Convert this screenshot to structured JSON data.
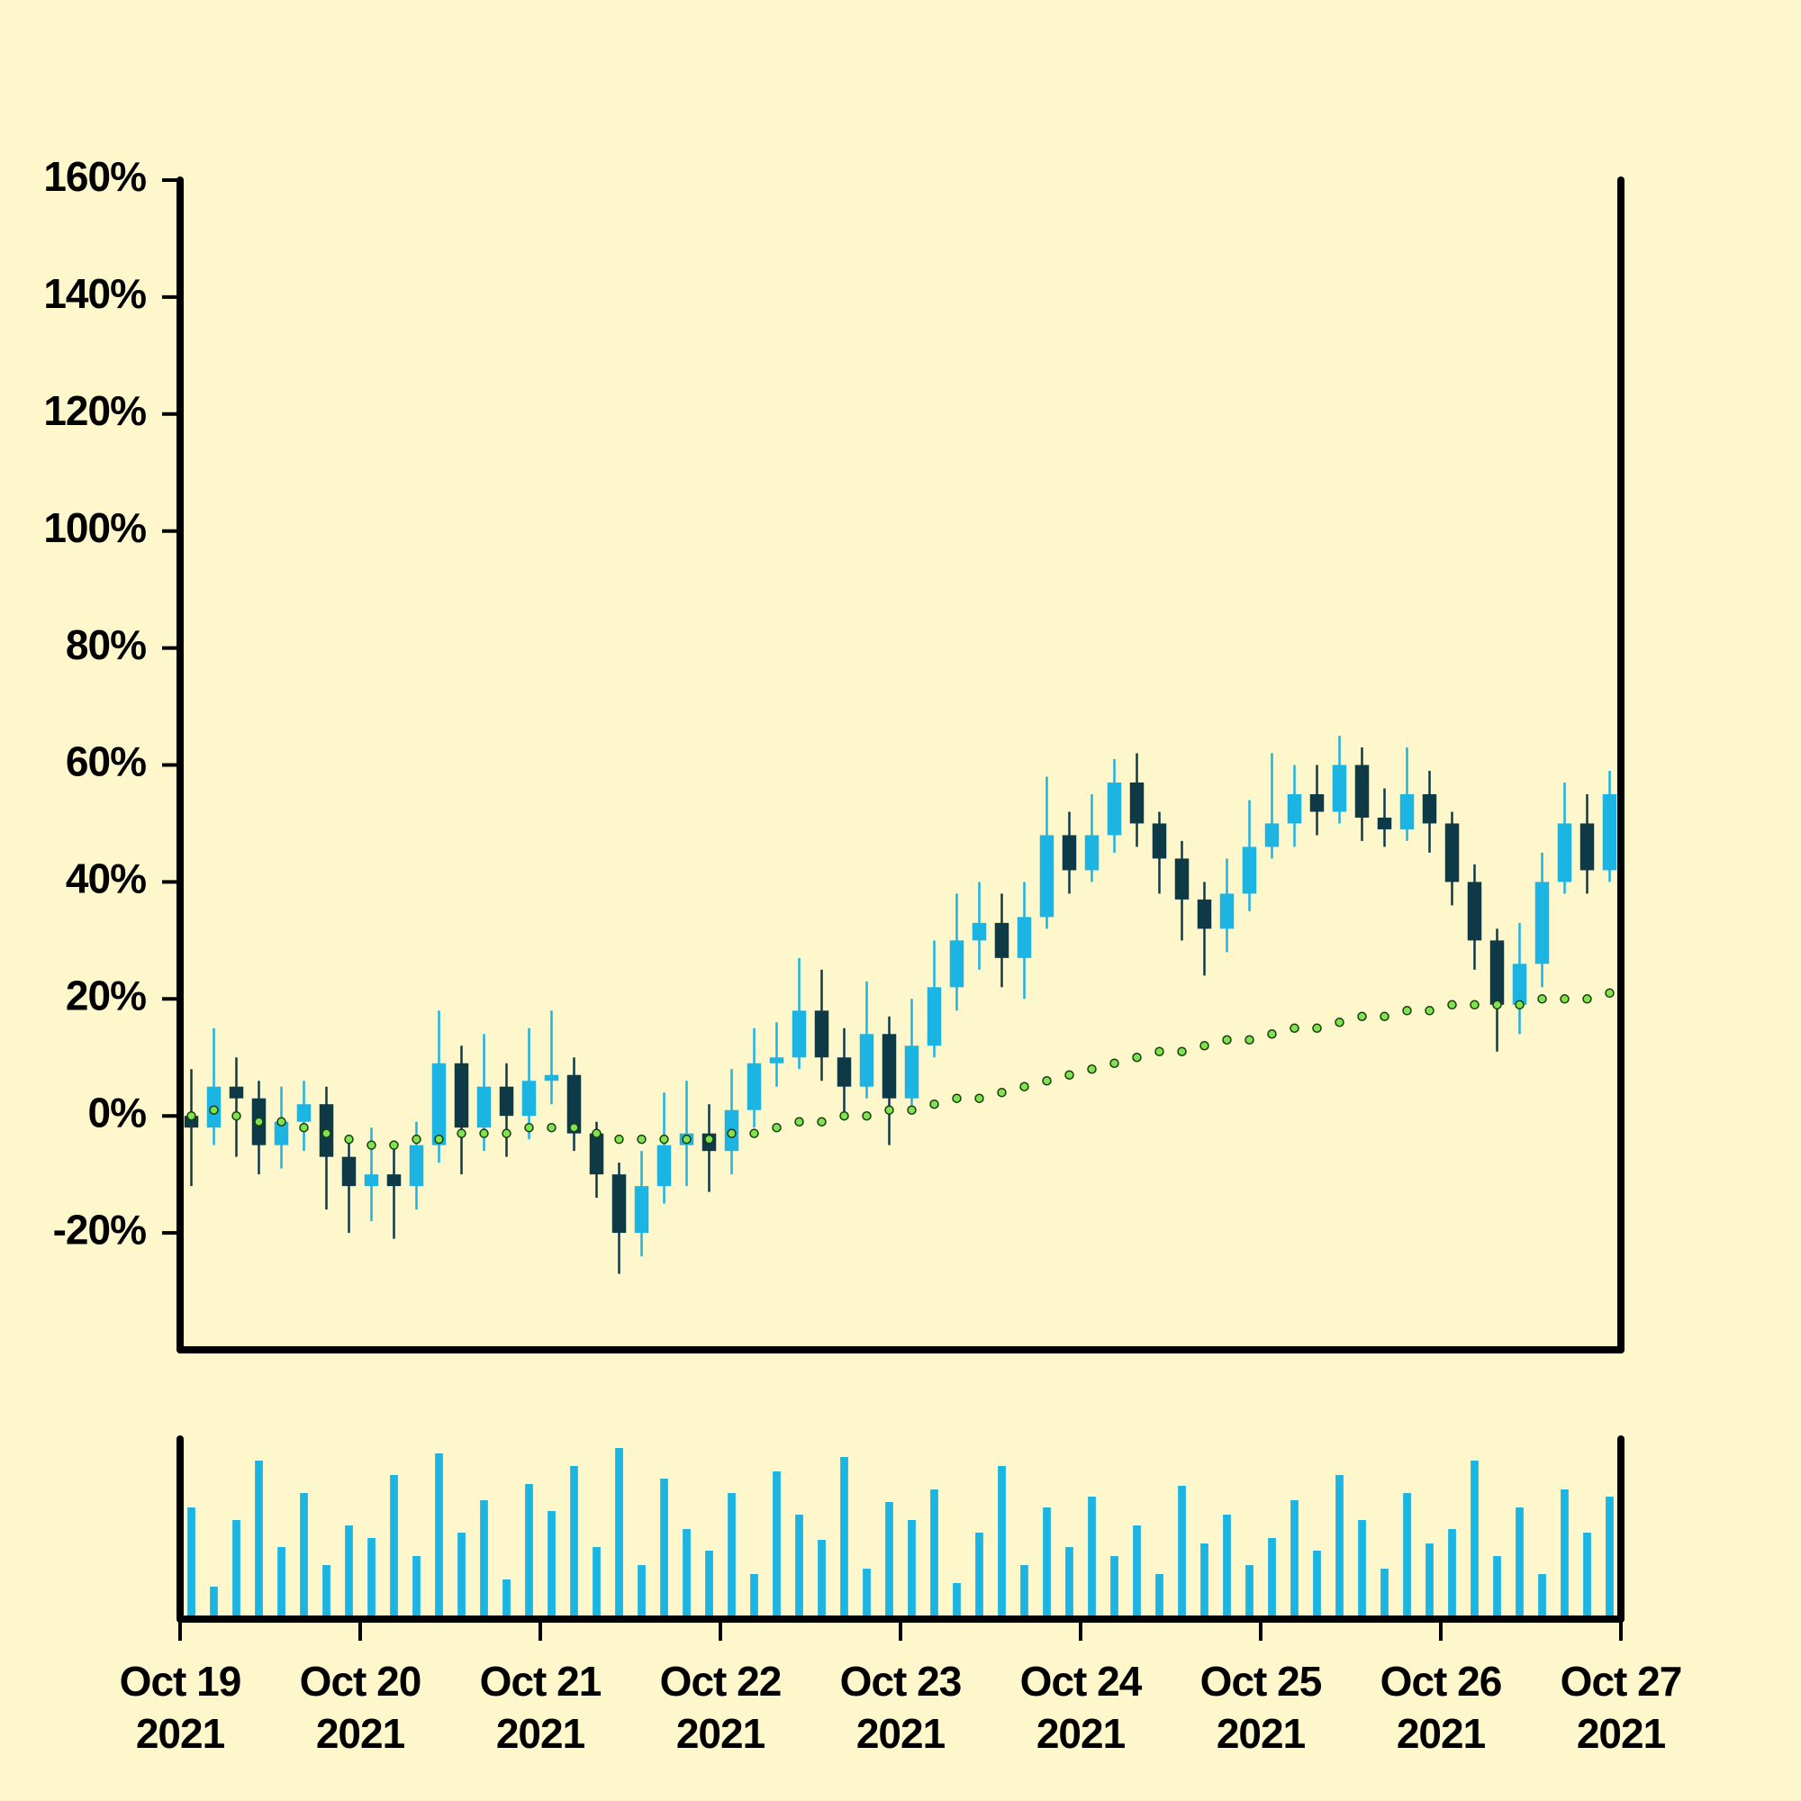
{
  "chart_data": {
    "type": "candlestick",
    "x": [
      0.0625,
      0.1875,
      0.3125,
      0.4375,
      0.5625,
      0.6875,
      0.8125,
      0.9375,
      1.0625,
      1.1875,
      1.3125,
      1.4375,
      1.5625,
      1.6875,
      1.8125,
      1.9375,
      2.0625,
      2.1875,
      2.3125,
      2.4375,
      2.5625,
      2.6875,
      2.8125,
      2.9375,
      3.0625,
      3.1875,
      3.3125,
      3.4375,
      3.5625,
      3.6875,
      3.8125,
      3.9375,
      4.0625,
      4.1875,
      4.3125,
      4.4375,
      4.5625,
      4.6875,
      4.8125,
      4.9375,
      5.0625,
      5.1875,
      5.3125,
      5.4375,
      5.5625,
      5.6875,
      5.8125,
      5.9375,
      6.0625,
      6.1875,
      6.3125,
      6.4375,
      6.5625,
      6.6875,
      6.8125,
      6.9375,
      7.0625,
      7.1875,
      7.3125,
      7.4375,
      7.5625,
      7.6875,
      7.8125,
      7.9375
    ],
    "open": [
      0,
      -2,
      5,
      3,
      -5,
      -1,
      2,
      -7,
      -12,
      -10,
      -12,
      -5,
      9,
      -2,
      5,
      0,
      6,
      7,
      -3,
      -10,
      -20,
      -12,
      -5,
      -3,
      -6,
      1,
      9,
      10,
      18,
      10,
      5,
      14,
      3,
      12,
      22,
      30,
      33,
      27,
      34,
      48,
      42,
      48,
      57,
      50,
      44,
      37,
      32,
      38,
      46,
      50,
      55,
      52,
      60,
      51,
      49,
      55,
      50,
      40,
      30,
      19,
      26,
      40,
      50,
      42
    ],
    "close": [
      -2,
      5,
      3,
      -5,
      -1,
      2,
      -7,
      -12,
      -10,
      -12,
      -5,
      9,
      -2,
      5,
      0,
      6,
      7,
      -3,
      -10,
      -20,
      -12,
      -5,
      -3,
      -6,
      1,
      9,
      10,
      18,
      10,
      5,
      14,
      3,
      12,
      22,
      30,
      33,
      27,
      34,
      48,
      42,
      48,
      57,
      50,
      44,
      37,
      32,
      38,
      46,
      50,
      55,
      52,
      60,
      51,
      49,
      55,
      50,
      40,
      30,
      19,
      26,
      40,
      50,
      42,
      55
    ],
    "high": [
      8,
      15,
      10,
      6,
      5,
      6,
      5,
      -4,
      -2,
      -5,
      -1,
      18,
      12,
      14,
      9,
      15,
      18,
      10,
      -1,
      -8,
      -6,
      4,
      6,
      2,
      8,
      15,
      16,
      27,
      25,
      15,
      23,
      17,
      20,
      30,
      38,
      40,
      38,
      40,
      58,
      52,
      55,
      61,
      62,
      52,
      47,
      40,
      44,
      54,
      62,
      60,
      60,
      65,
      63,
      56,
      63,
      59,
      52,
      43,
      32,
      33,
      45,
      57,
      55,
      59
    ],
    "low": [
      -12,
      -5,
      -7,
      -10,
      -9,
      -6,
      -16,
      -20,
      -18,
      -21,
      -16,
      -8,
      -10,
      -6,
      -7,
      -4,
      2,
      -6,
      -14,
      -27,
      -24,
      -15,
      -12,
      -13,
      -10,
      -2,
      5,
      8,
      6,
      0,
      3,
      -5,
      1,
      10,
      18,
      25,
      22,
      20,
      32,
      38,
      40,
      45,
      46,
      38,
      30,
      24,
      28,
      35,
      44,
      46,
      48,
      50,
      47,
      46,
      47,
      45,
      36,
      25,
      11,
      14,
      22,
      38,
      38,
      40
    ],
    "up_color": "#1cb4e3",
    "down_color": "#0e3a47",
    "moving_average": {
      "color": "#7ee34f",
      "values": [
        0,
        1,
        0,
        -1,
        -1,
        -2,
        -3,
        -4,
        -5,
        -5,
        -4,
        -4,
        -3,
        -3,
        -3,
        -2,
        -2,
        -2,
        -3,
        -4,
        -4,
        -4,
        -4,
        -4,
        -3,
        -3,
        -2,
        -1,
        -1,
        0,
        0,
        1,
        1,
        2,
        3,
        3,
        4,
        5,
        6,
        7,
        8,
        9,
        10,
        11,
        11,
        12,
        13,
        13,
        14,
        15,
        15,
        16,
        17,
        17,
        18,
        18,
        19,
        19,
        19,
        19,
        20,
        20,
        20,
        21
      ]
    },
    "volume": {
      "color": "#1cb4e3",
      "ylim": [
        0,
        100
      ],
      "values": [
        62,
        18,
        55,
        88,
        40,
        70,
        30,
        52,
        45,
        80,
        35,
        92,
        48,
        66,
        22,
        75,
        60,
        85,
        40,
        95,
        30,
        78,
        50,
        38,
        70,
        25,
        82,
        58,
        44,
        90,
        28,
        65,
        55,
        72,
        20,
        48,
        85,
        30,
        62,
        40,
        68,
        35,
        52,
        25,
        74,
        42,
        58,
        30,
        45,
        66,
        38,
        80,
        55,
        28,
        70,
        42,
        50,
        88,
        35,
        62,
        25,
        72,
        48,
        68
      ]
    },
    "xlim": [
      0,
      8
    ],
    "xticks": [
      {
        "value": 0,
        "label": "Oct 19\n2021"
      },
      {
        "value": 1,
        "label": "Oct 20\n2021"
      },
      {
        "value": 2,
        "label": "Oct 21\n2021"
      },
      {
        "value": 3,
        "label": "Oct 22\n2021"
      },
      {
        "value": 4,
        "label": "Oct 23\n2021"
      },
      {
        "value": 5,
        "label": "Oct 24\n2021"
      },
      {
        "value": 6,
        "label": "Oct 25\n2021"
      },
      {
        "value": 7,
        "label": "Oct 26\n2021"
      },
      {
        "value": 8,
        "label": "Oct 27\n2021"
      }
    ],
    "ylim": [
      -40,
      160
    ],
    "yticks": [
      {
        "value": -20,
        "label": "-20%"
      },
      {
        "value": 0,
        "label": "0%"
      },
      {
        "value": 20,
        "label": "20%"
      },
      {
        "value": 40,
        "label": "40%"
      },
      {
        "value": 60,
        "label": "60%"
      },
      {
        "value": 80,
        "label": "80%"
      },
      {
        "value": 100,
        "label": "100%"
      },
      {
        "value": 120,
        "label": "120%"
      },
      {
        "value": 140,
        "label": "140%"
      },
      {
        "value": 160,
        "label": "160%"
      }
    ]
  }
}
